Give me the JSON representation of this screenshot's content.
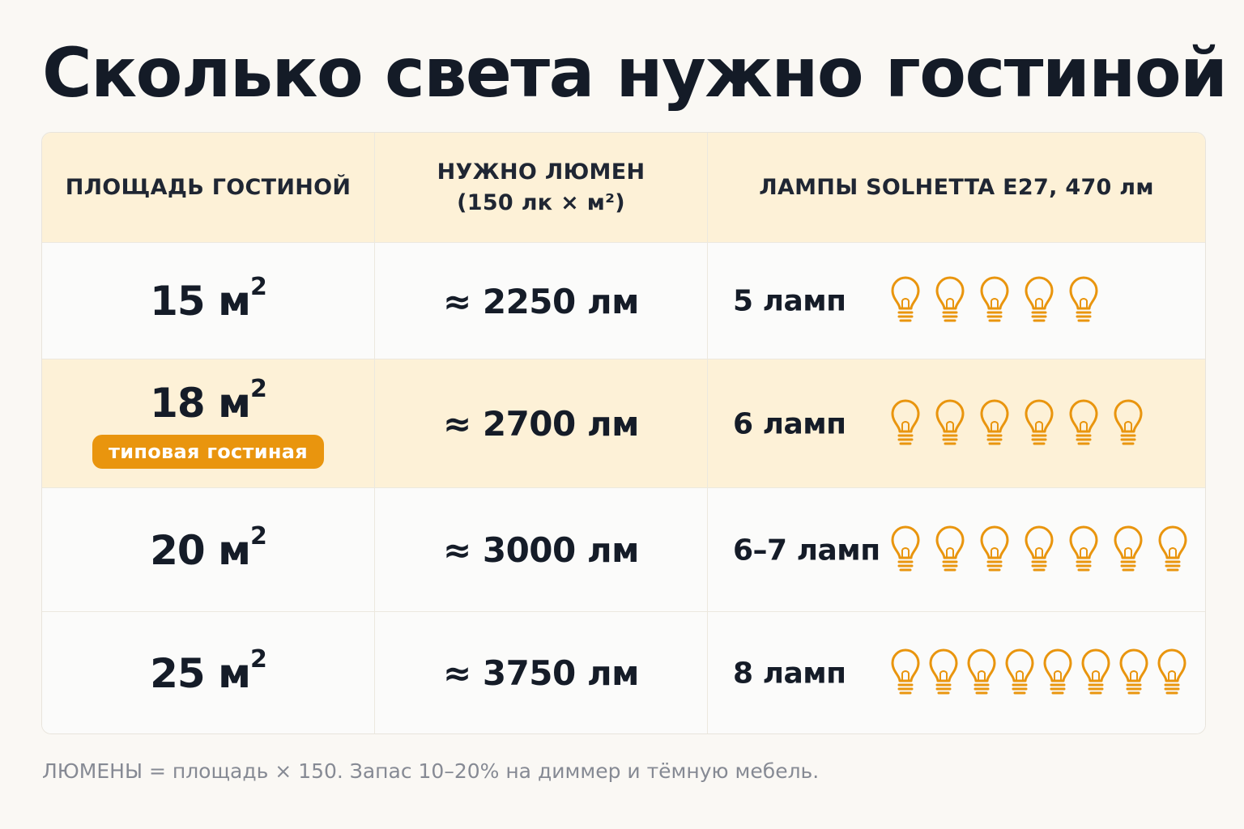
{
  "title": "Сколько света нужно гостиной",
  "header": {
    "col1": "ПЛОЩАДЬ ГОСТИНОЙ",
    "col2_line1": "НУЖНО ЛЮМЕН",
    "col2_line2": "(150 лк × м²)",
    "col3": "ЛАМПЫ SOLHETTA E27, 470 лм"
  },
  "rows": [
    {
      "area": "15 м",
      "area_unit_sup": "2",
      "lumens": "≈ 2250 лм",
      "lamps_label": "5 ламп",
      "bulb_icons": 5
    },
    {
      "area": "18 м",
      "area_unit_sup": "2",
      "badge": "типовая гостиная",
      "lumens": "≈ 2700 лм",
      "lamps_label": "6 ламп",
      "bulb_icons": 6
    },
    {
      "area": "20 м",
      "area_unit_sup": "2",
      "lumens": "≈ 3000 лм",
      "lamps_label": "6–7 ламп",
      "bulb_icons": 7
    },
    {
      "area": "25 м",
      "area_unit_sup": "2",
      "lumens": "≈ 3750 лм",
      "lamps_label": "8 ламп",
      "bulb_icons": 8
    }
  ],
  "footnote": "ЛЮМЕНЫ = площадь × 150. Запас 10–20% на диммер и тёмную мебель.",
  "icons": {
    "lamp": "light-bulb-icon"
  },
  "colors": {
    "accent": "#e9950e",
    "highlight_row": "#fdf1d7",
    "bulb_stroke": "#e9950e"
  }
}
